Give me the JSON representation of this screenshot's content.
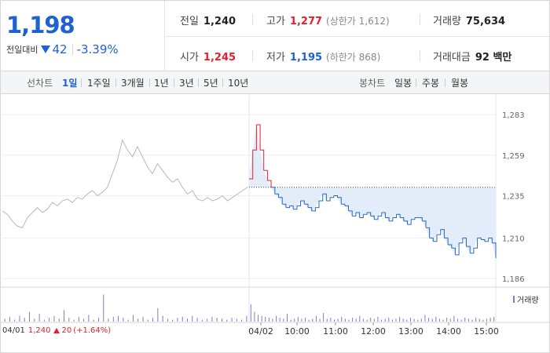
{
  "quote": {
    "price": "1,198",
    "change_label": "전일대비",
    "change_amount": "42",
    "change_pct": "-3.39%"
  },
  "stats": {
    "prev_close": {
      "label": "전일",
      "value": "1,240"
    },
    "high": {
      "label": "고가",
      "value": "1,277",
      "sub": "(상한가 1,612)"
    },
    "volume": {
      "label": "거래량",
      "value": "75,634"
    },
    "open": {
      "label": "시가",
      "value": "1,245"
    },
    "low": {
      "label": "저가",
      "value": "1,195",
      "sub": "(하한가 868)"
    },
    "value_traded": {
      "label": "거래대금",
      "value": "92 백만"
    }
  },
  "line_tabs": {
    "label": "선차트",
    "items": [
      "1일",
      "1주일",
      "3개월",
      "1년",
      "3년",
      "5년",
      "10년"
    ],
    "active": "1일"
  },
  "candle_tabs": {
    "label": "봉차트",
    "items": [
      "일봉",
      "주봉",
      "월봉"
    ]
  },
  "chart_data": {
    "type": "line",
    "y_ticks": [
      "1,283",
      "1,259",
      "1,235",
      "1,210",
      "1,186"
    ],
    "y_tick_values": [
      1283,
      1259,
      1235,
      1210,
      1186
    ],
    "ylim": [
      1180,
      1290
    ],
    "x_ticks": [
      "04/02",
      "10:00",
      "11:00",
      "12:00",
      "13:00",
      "14:00",
      "15:00"
    ],
    "prev_day": {
      "date": "04/01",
      "close": "1,240",
      "change": "20",
      "change_pct": "(+1.64%)"
    },
    "reference_line": 1240,
    "prev_series": [
      1226,
      1224,
      1220,
      1217,
      1216,
      1222,
      1225,
      1228,
      1225,
      1227,
      1231,
      1229,
      1232,
      1233,
      1231,
      1234,
      1233,
      1236,
      1238,
      1235,
      1237,
      1240,
      1248,
      1256,
      1268,
      1262,
      1258,
      1264,
      1258,
      1252,
      1248,
      1254,
      1250,
      1246,
      1243,
      1245,
      1240,
      1236,
      1238,
      1233,
      1232,
      1234,
      1232,
      1233,
      1235,
      1232,
      1234,
      1236,
      1238,
      1240
    ],
    "today_series": [
      1245,
      1262,
      1277,
      1262,
      1250,
      1244,
      1240,
      1236,
      1234,
      1230,
      1228,
      1229,
      1227,
      1229,
      1232,
      1230,
      1228,
      1226,
      1228,
      1232,
      1236,
      1232,
      1234,
      1235,
      1234,
      1230,
      1229,
      1226,
      1223,
      1225,
      1222,
      1224,
      1225,
      1223,
      1221,
      1223,
      1225,
      1222,
      1220,
      1222,
      1224,
      1222,
      1220,
      1218,
      1221,
      1222,
      1222,
      1220,
      1216,
      1210,
      1208,
      1212,
      1215,
      1210,
      1206,
      1204,
      1200,
      1207,
      1210,
      1205,
      1201,
      1204,
      1210,
      1209,
      1208,
      1210,
      1207,
      1198
    ],
    "prev_volume": [
      3,
      5,
      2,
      6,
      4,
      10,
      3,
      8,
      2,
      4,
      6,
      3,
      12,
      4,
      2,
      5,
      3,
      7,
      2,
      4,
      28,
      3,
      5,
      6,
      4,
      2,
      7,
      3,
      5,
      2,
      4,
      14,
      6,
      3,
      2,
      4,
      5,
      3,
      6,
      4,
      2,
      3,
      5,
      4,
      3,
      2,
      4,
      3,
      2,
      6
    ],
    "today_volume": [
      18,
      10,
      7,
      6,
      5,
      4,
      3,
      6,
      4,
      3,
      8,
      2,
      3,
      5,
      3,
      4,
      2,
      3,
      6,
      3,
      9,
      3,
      4,
      2,
      3,
      5,
      3,
      2,
      4,
      3,
      6,
      3,
      2,
      4,
      3,
      5,
      2,
      3,
      4,
      2,
      3,
      5,
      3,
      2,
      4,
      3,
      2,
      3,
      7,
      4,
      3,
      5,
      3,
      2,
      4,
      3,
      6,
      3,
      2,
      4,
      3,
      2,
      4,
      3,
      2,
      3,
      4,
      5
    ],
    "colors": {
      "prev_line": "#b8b8b8",
      "today_up": "#e5202c",
      "today_down": "#2768c9",
      "fill": "#e3ecf9",
      "volume": "#8a78c0"
    }
  },
  "volume_legend": "거래량"
}
